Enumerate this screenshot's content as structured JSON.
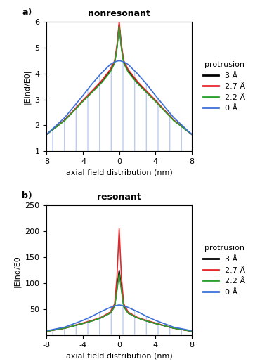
{
  "chart_data": [
    {
      "type": "line",
      "title": "nonresonant",
      "annotations": [
        "a)",
        "protrusion"
      ],
      "x_label": "axial field distribution (nm)",
      "y_label": "|Eind/E0|",
      "x": [
        -8,
        -6,
        -4,
        -3,
        -2,
        -1,
        -0.5,
        -0.25,
        0,
        0.25,
        0.5,
        1,
        2,
        3,
        4,
        6,
        8
      ],
      "series": [
        {
          "name": "3 Å",
          "color": "#000000",
          "values": [
            1.65,
            2.2,
            2.95,
            3.3,
            3.65,
            4.1,
            4.45,
            5.0,
            5.9,
            5.0,
            4.45,
            4.1,
            3.65,
            3.3,
            2.95,
            2.2,
            1.65
          ]
        },
        {
          "name": "2.7 Å",
          "color": "#e8262a",
          "values": [
            1.65,
            2.2,
            2.97,
            3.33,
            3.7,
            4.15,
            4.5,
            5.1,
            6.0,
            5.1,
            4.5,
            4.15,
            3.7,
            3.33,
            2.97,
            2.2,
            1.65
          ]
        },
        {
          "name": "2.2 Å",
          "color": "#2ca02c",
          "values": [
            1.65,
            2.18,
            2.92,
            3.27,
            3.62,
            4.05,
            4.4,
            4.95,
            5.8,
            4.95,
            4.4,
            4.05,
            3.62,
            3.27,
            2.92,
            2.18,
            1.65
          ]
        },
        {
          "name": "0 Å",
          "color": "#3a6fd8",
          "values": [
            1.65,
            2.3,
            3.15,
            3.6,
            4.0,
            4.35,
            4.45,
            4.48,
            4.5,
            4.48,
            4.45,
            4.35,
            4.0,
            3.6,
            3.15,
            2.3,
            1.65
          ]
        }
      ],
      "xlim": [
        -8,
        8
      ],
      "xticks": [
        -8,
        -4,
        0,
        4,
        8
      ],
      "ylim": [
        1,
        6
      ],
      "yticks": [
        1,
        2,
        3,
        4,
        5,
        6
      ],
      "legend": "center left"
    },
    {
      "type": "line",
      "title": "resonant",
      "annotations": [
        "b)",
        "protrusion"
      ],
      "x_label": "axial field distribution (nm)",
      "y_label": "|Eind/E0|",
      "x": [
        -8,
        -6,
        -4,
        -3,
        -2,
        -1,
        -0.5,
        -0.25,
        0,
        0.25,
        0.5,
        1,
        2,
        3,
        4,
        6,
        8
      ],
      "series": [
        {
          "name": "3 Å",
          "color": "#000000",
          "values": [
            7,
            13,
            22,
            27,
            33,
            42,
            55,
            90,
            125,
            90,
            55,
            42,
            33,
            27,
            22,
            13,
            7
          ]
        },
        {
          "name": "2.7 Å",
          "color": "#e8262a",
          "values": [
            7,
            13,
            23,
            28,
            34,
            44,
            60,
            110,
            205,
            110,
            60,
            44,
            34,
            28,
            23,
            13,
            7
          ]
        },
        {
          "name": "2.2 Å",
          "color": "#2ca02c",
          "values": [
            7,
            13,
            22,
            27,
            33,
            42,
            54,
            85,
            118,
            85,
            54,
            42,
            33,
            27,
            22,
            13,
            7
          ]
        },
        {
          "name": "0 Å",
          "color": "#3a6fd8",
          "values": [
            8,
            15,
            28,
            36,
            45,
            53,
            56,
            57,
            58,
            57,
            56,
            53,
            45,
            36,
            28,
            15,
            8
          ]
        }
      ],
      "xlim": [
        -8,
        8
      ],
      "xticks": [
        -8,
        -4,
        0,
        4,
        8
      ],
      "ylim": [
        0,
        250
      ],
      "yticks": [
        50,
        100,
        150,
        200,
        250
      ],
      "legend": "center left"
    }
  ]
}
